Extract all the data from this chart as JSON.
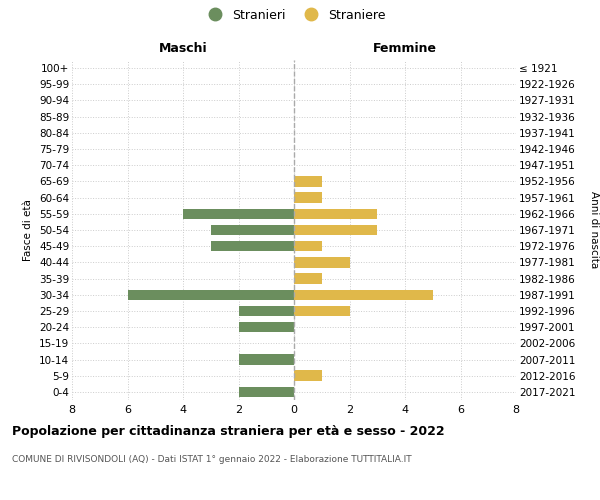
{
  "age_groups": [
    "0-4",
    "5-9",
    "10-14",
    "15-19",
    "20-24",
    "25-29",
    "30-34",
    "35-39",
    "40-44",
    "45-49",
    "50-54",
    "55-59",
    "60-64",
    "65-69",
    "70-74",
    "75-79",
    "80-84",
    "85-89",
    "90-94",
    "95-99",
    "100+"
  ],
  "birth_years": [
    "2017-2021",
    "2012-2016",
    "2007-2011",
    "2002-2006",
    "1997-2001",
    "1992-1996",
    "1987-1991",
    "1982-1986",
    "1977-1981",
    "1972-1976",
    "1967-1971",
    "1962-1966",
    "1957-1961",
    "1952-1956",
    "1947-1951",
    "1942-1946",
    "1937-1941",
    "1932-1936",
    "1927-1931",
    "1922-1926",
    "≤ 1921"
  ],
  "maschi": [
    2,
    0,
    2,
    0,
    2,
    2,
    6,
    0,
    0,
    3,
    3,
    4,
    0,
    0,
    0,
    0,
    0,
    0,
    0,
    0,
    0
  ],
  "femmine": [
    0,
    1,
    0,
    0,
    0,
    2,
    5,
    1,
    2,
    1,
    3,
    3,
    1,
    1,
    0,
    0,
    0,
    0,
    0,
    0,
    0
  ],
  "color_maschi": "#6b8e5e",
  "color_femmine": "#e0b84a",
  "title": "Popolazione per cittadinanza straniera per età e sesso - 2022",
  "subtitle": "COMUNE DI RIVISONDOLI (AQ) - Dati ISTAT 1° gennaio 2022 - Elaborazione TUTTITALIA.IT",
  "xlabel_left": "Maschi",
  "xlabel_right": "Femmine",
  "ylabel": "Fasce di età",
  "ylabel_right": "Anni di nascita",
  "legend_maschi": "Stranieri",
  "legend_femmine": "Straniere",
  "xlim": 8,
  "background_color": "#ffffff",
  "grid_color": "#cccccc"
}
